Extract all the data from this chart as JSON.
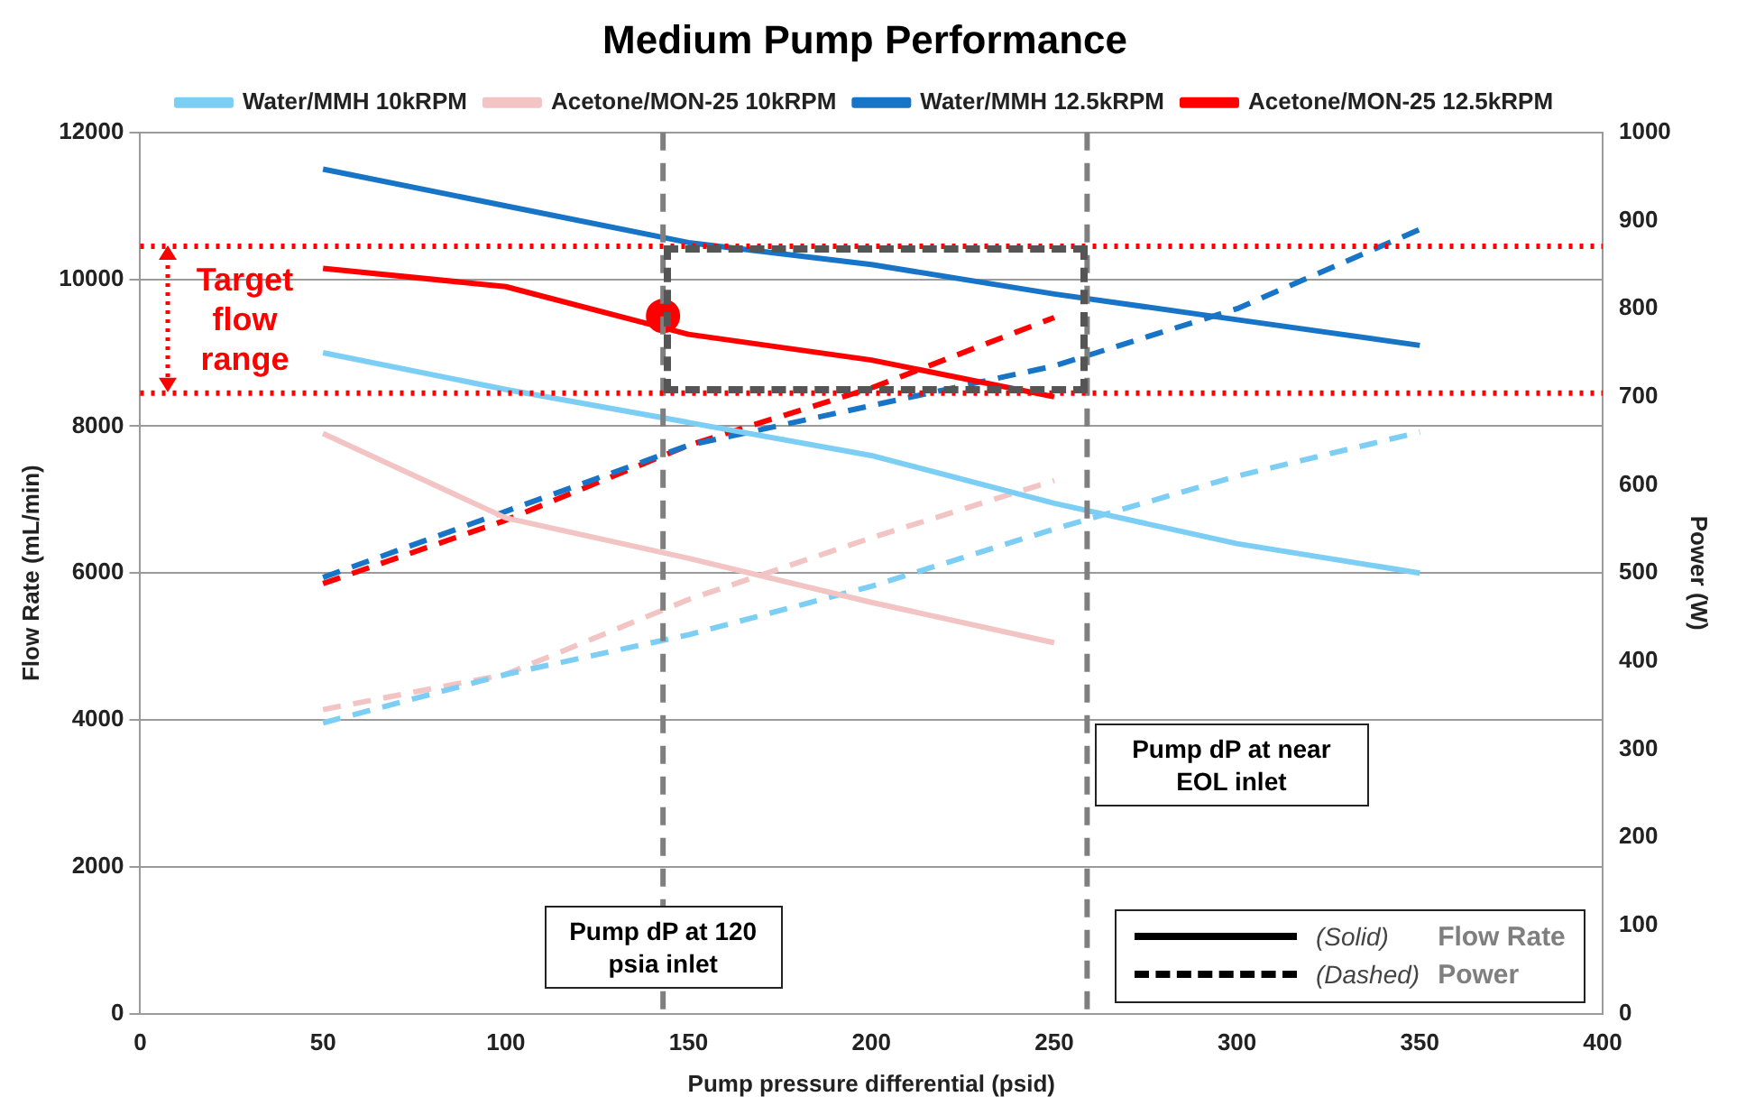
{
  "chart_data": {
    "type": "line",
    "title": "Medium Pump Performance",
    "xlabel": "Pump pressure differential (psid)",
    "ylabel": "Flow Rate (mL/min)",
    "y2label": "Power (W)",
    "x": [
      50,
      100,
      150,
      200,
      250,
      300,
      350
    ],
    "series": [
      {
        "name": "Water/MMH 10kRPM",
        "color": "#7dcef5",
        "values": [
          9000,
          8500,
          8050,
          7600,
          6950,
          6400,
          6000
        ]
      },
      {
        "name": "Acetone/MON-25 10kRPM",
        "color": "#f2c4c4",
        "x": [
          50,
          100,
          150,
          200,
          250
        ],
        "values": [
          7900,
          6750,
          6200,
          5600,
          5050
        ]
      },
      {
        "name": "Water/MMH 12.5kRPM",
        "color": "#1874c6",
        "values": [
          11500,
          11000,
          10500,
          10200,
          9800,
          9450,
          9100
        ]
      },
      {
        "name": "Acetone/MON-25 12.5kRPM",
        "color": "#ff0000",
        "x": [
          50,
          100,
          150,
          200,
          250
        ],
        "values": [
          10150,
          9900,
          9250,
          8900,
          8400
        ]
      },
      {
        "color": "#7dcef5",
        "axis": "y2",
        "line_style": "dashed",
        "values": [
          330,
          385,
          430,
          485,
          550,
          610,
          660
        ]
      },
      {
        "color": "#f2c4c4",
        "axis": "y2",
        "line_style": "dashed",
        "x": [
          50,
          100,
          150,
          200,
          250
        ],
        "values": [
          345,
          385,
          470,
          540,
          605
        ]
      },
      {
        "color": "#1874c6",
        "axis": "y2",
        "line_style": "dashed",
        "values": [
          495,
          570,
          645,
          690,
          735,
          800,
          890
        ]
      },
      {
        "color": "#ff0000",
        "axis": "y2",
        "line_style": "dashed",
        "x": [
          50,
          100,
          150,
          200,
          250
        ],
        "values": [
          488,
          560,
          645,
          710,
          790
        ]
      },
      {
        "type": "scatter",
        "color": "#ff0000",
        "marker": "circle",
        "x": [
          143
        ],
        "values": [
          9500
        ]
      }
    ],
    "xlim": [
      0,
      400
    ],
    "xticks": [
      0,
      50,
      100,
      150,
      200,
      250,
      300,
      350,
      400
    ],
    "ylim": [
      0,
      12000
    ],
    "yticks": [
      0,
      2000,
      4000,
      6000,
      8000,
      10000,
      12000
    ],
    "y2lim": [
      0,
      1000
    ],
    "y2ticks": [
      0,
      100,
      200,
      300,
      400,
      500,
      600,
      700,
      800,
      900,
      1000
    ],
    "grid": "y",
    "legend": "top",
    "marker": "none",
    "line_style": "solid",
    "ref_lines": [
      {
        "axis": "x",
        "value": 143,
        "label": "Pump dP at 120 psia inlet",
        "color": "#7f7f7f",
        "line_style": "dashed"
      },
      {
        "axis": "x",
        "value": 259,
        "label": "Pump dP at near EOL inlet",
        "color": "#7f7f7f",
        "line_style": "dashed"
      },
      {
        "axis": "y",
        "value": 10450,
        "color": "#ff0000",
        "line_style": "dotted"
      },
      {
        "axis": "y",
        "value": 8450,
        "color": "#ff0000",
        "line_style": "dotted"
      }
    ],
    "annotations": [
      "Target flow range",
      "(Solid)",
      "Flow Rate",
      "(Dashed)",
      "Power"
    ]
  }
}
